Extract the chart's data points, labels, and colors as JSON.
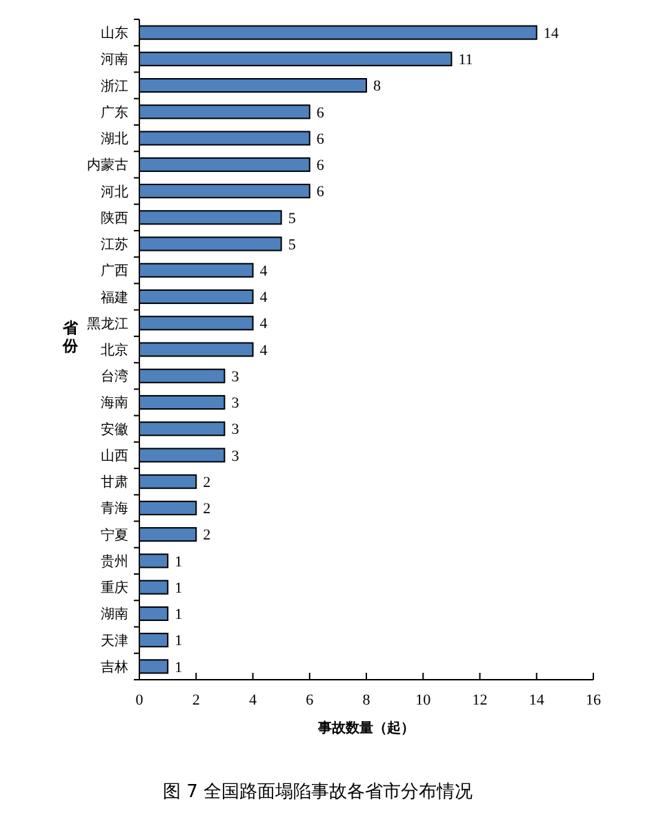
{
  "chart_data": {
    "type": "bar",
    "orientation": "horizontal",
    "title": "图 7 全国路面塌陷事故各省市分布情况",
    "xlabel": "事故数量（起）",
    "ylabel": "省份",
    "categories": [
      "山东",
      "河南",
      "浙江",
      "广东",
      "湖北",
      "内蒙古",
      "河北",
      "陕西",
      "江苏",
      "广西",
      "福建",
      "黑龙江",
      "北京",
      "台湾",
      "海南",
      "安徽",
      "山西",
      "甘肃",
      "青海",
      "宁夏",
      "贵州",
      "重庆",
      "湖南",
      "天津",
      "吉林"
    ],
    "values": [
      14,
      11,
      8,
      6,
      6,
      6,
      6,
      5,
      5,
      4,
      4,
      4,
      4,
      3,
      3,
      3,
      3,
      2,
      2,
      2,
      1,
      1,
      1,
      1,
      1
    ],
    "color": "#4f81bd",
    "data_labels": true,
    "xlim": [
      0,
      16
    ],
    "xticks": [
      0,
      2,
      4,
      6,
      8,
      10,
      12,
      14,
      16
    ]
  }
}
